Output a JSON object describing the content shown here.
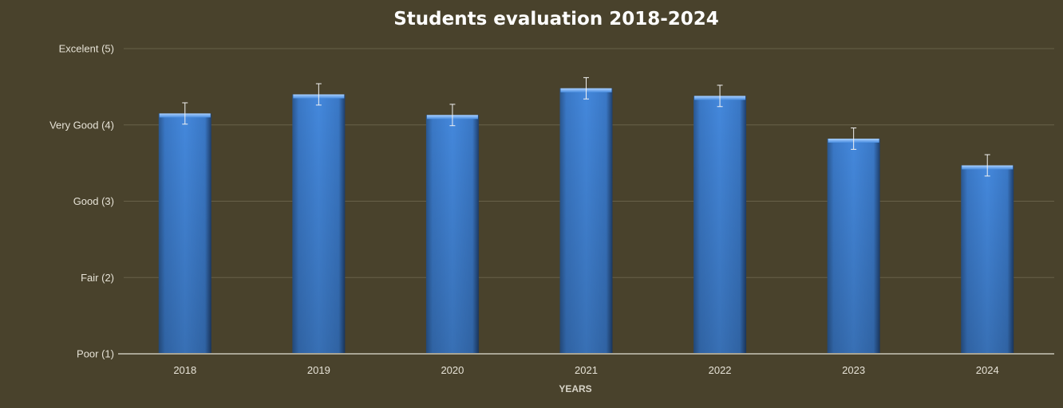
{
  "chart_data": {
    "type": "bar",
    "title": "Students evaluation 2018-2024",
    "xlabel": "YEARS",
    "ylabel": "",
    "categories": [
      "2018",
      "2019",
      "2020",
      "2021",
      "2022",
      "2023",
      "2024"
    ],
    "values": [
      4.15,
      4.4,
      4.13,
      4.48,
      4.38,
      3.82,
      3.47
    ],
    "error": [
      0.14,
      0.14,
      0.14,
      0.14,
      0.14,
      0.14,
      0.14
    ],
    "ylim": [
      1,
      5
    ],
    "yticks": [
      {
        "value": 1,
        "label": "Poor (1)"
      },
      {
        "value": 2,
        "label": "Fair (2)"
      },
      {
        "value": 3,
        "label": "Good (3)"
      },
      {
        "value": 4,
        "label": "Very Good (4)"
      },
      {
        "value": 5,
        "label": "Excelent (5)"
      }
    ],
    "grid": true,
    "legend": "none",
    "colors": {
      "bar": "#3f7fd0",
      "background": "#49422c"
    }
  }
}
